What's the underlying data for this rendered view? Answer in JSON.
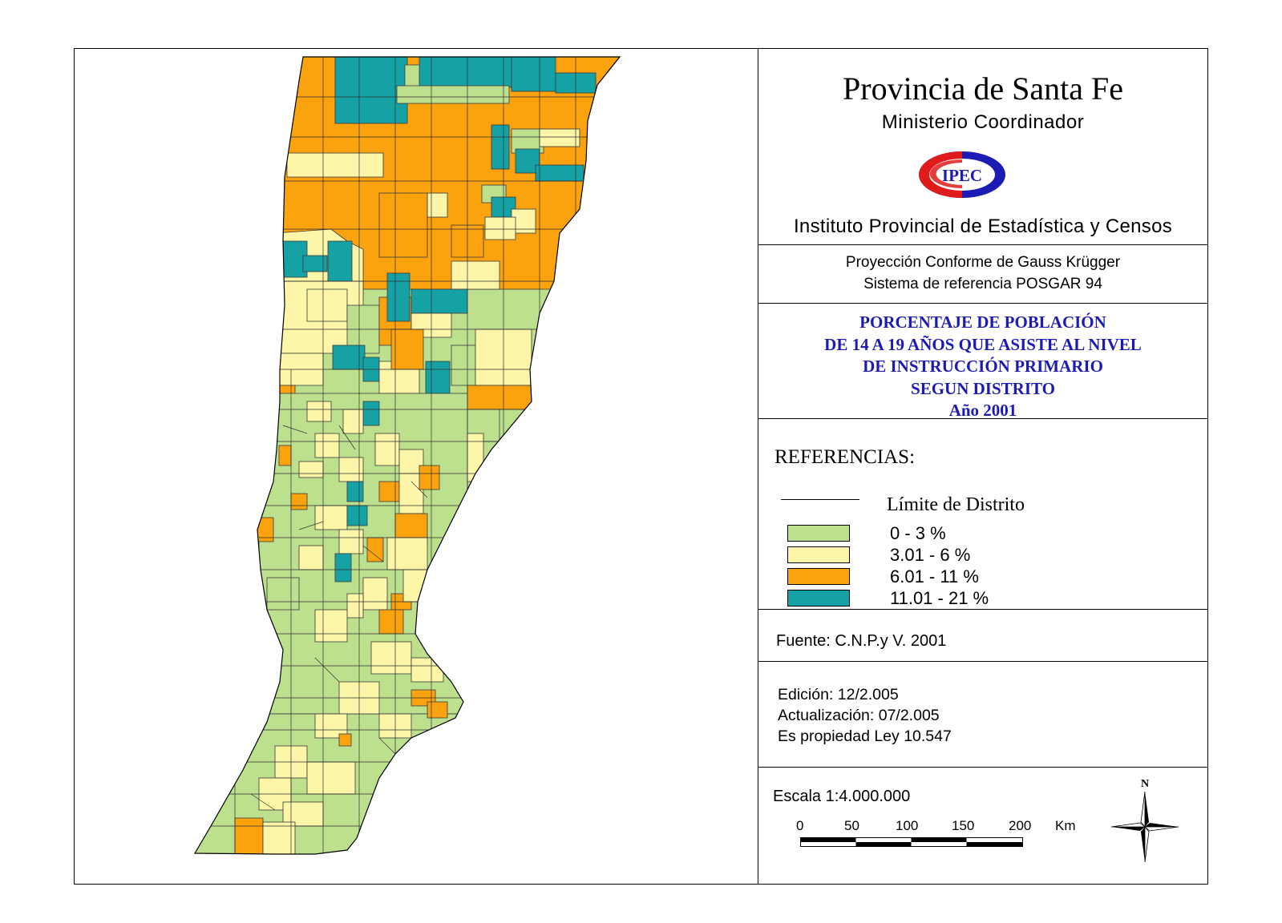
{
  "header": {
    "title": "Provincia de Santa Fe",
    "ministry": "Ministerio Coordinador",
    "logo_text": "IPEC",
    "institute": "Instituto Provincial de Estadística y Censos"
  },
  "projection": {
    "line1": "Proyección Conforme de Gauss Krügger",
    "line2": "Sistema de referencia POSGAR 94"
  },
  "theme": {
    "line1": "PORCENTAJE DE POBLACIÓN",
    "line2": "DE 14 A 19 AÑOS QUE ASISTE AL NIVEL",
    "line3": "DE INSTRUCCIÓN PRIMARIO",
    "line4": "SEGUN DISTRITO",
    "line5": "Año 2001"
  },
  "legend": {
    "title": "REFERENCIAS:",
    "boundary_label": "Límite de Distrito",
    "classes": [
      {
        "label": "0 - 3 %",
        "color": "#bde08f"
      },
      {
        "label": "3.01 - 6 %",
        "color": "#fdf5a8"
      },
      {
        "label": "6.01 - 11 %",
        "color": "#fba20f"
      },
      {
        "label": "11.01 - 21 %",
        "color": "#16a1a5"
      }
    ]
  },
  "source": "Fuente:  C.N.P.y V. 2001",
  "edition": {
    "edicion": "Edición:  12/2.005",
    "actualizacion": "Actualización:  07/2.005",
    "propiedad": "Es propiedad Ley 10.547"
  },
  "scale": {
    "label": "Escala 1:4.000.000",
    "ticks": [
      "0",
      "50",
      "100",
      "150",
      "200"
    ],
    "unit": "Km",
    "north_label": "N"
  }
}
